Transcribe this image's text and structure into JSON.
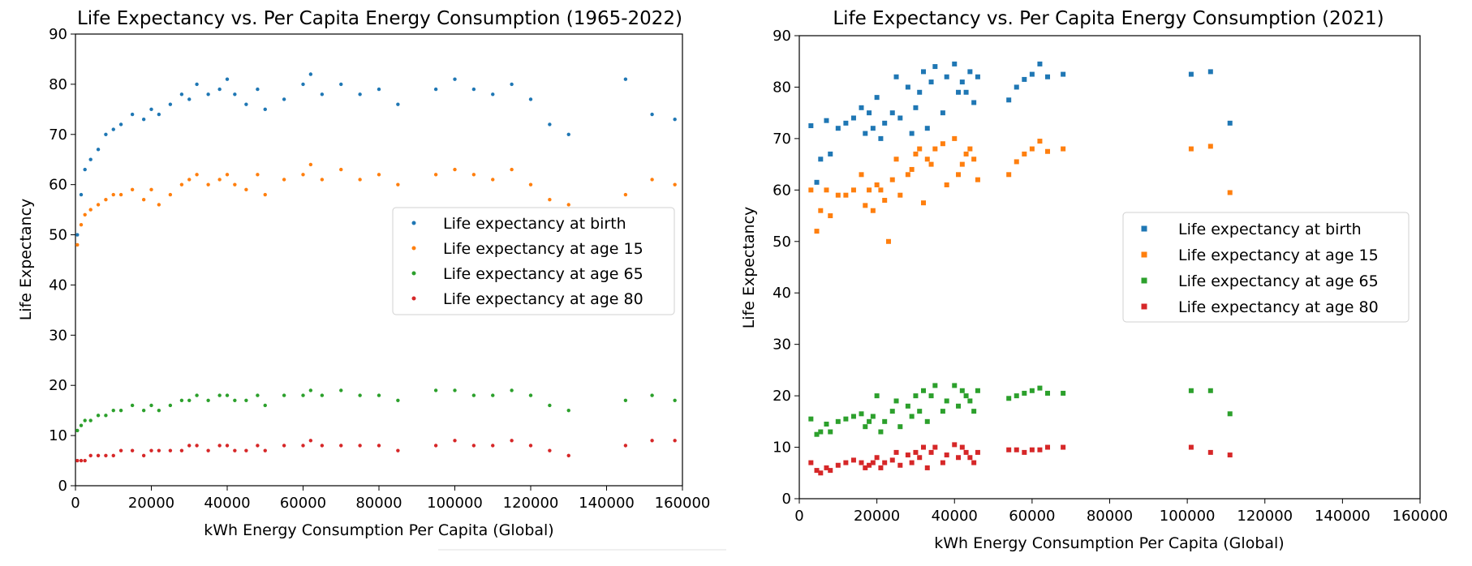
{
  "colors": {
    "birth": "#1f77b4",
    "age15": "#ff7f0e",
    "age65": "#2ca02c",
    "age80": "#d62728"
  },
  "chart_data": [
    {
      "type": "scatter",
      "title": "Life Expectancy vs. Per Capita Energy Consumption (1965-2022)",
      "xlabel": "kWh Energy Consumption Per Capita (Global)",
      "ylabel": "Life Expectancy",
      "xlim": [
        0,
        160000
      ],
      "ylim": [
        0,
        90
      ],
      "xticks": [
        "0",
        "20000",
        "40000",
        "60000",
        "80000",
        "100000",
        "120000",
        "140000",
        "160000"
      ],
      "yticks": [
        "0",
        "10",
        "20",
        "30",
        "40",
        "50",
        "60",
        "70",
        "80",
        "90"
      ],
      "grid": false,
      "legend_position": "center-right",
      "marker": "dot",
      "series": [
        {
          "name": "Life expectancy at birth",
          "color_key": "birth",
          "x": [
            500,
            1500,
            2500,
            4000,
            6000,
            8000,
            10000,
            12000,
            15000,
            18000,
            20000,
            22000,
            25000,
            28000,
            30000,
            32000,
            35000,
            38000,
            40000,
            42000,
            45000,
            48000,
            50000,
            55000,
            60000,
            62000,
            65000,
            70000,
            75000,
            80000,
            85000,
            95000,
            100000,
            105000,
            110000,
            115000,
            120000,
            125000,
            130000,
            145000,
            152000,
            158000
          ],
          "y": [
            50,
            58,
            63,
            65,
            67,
            70,
            71,
            72,
            74,
            73,
            75,
            74,
            76,
            78,
            77,
            80,
            78,
            79,
            81,
            78,
            76,
            79,
            75,
            77,
            80,
            82,
            78,
            80,
            78,
            79,
            76,
            79,
            81,
            79,
            78,
            80,
            77,
            72,
            70,
            81,
            74,
            73
          ]
        },
        {
          "name": "Life expectancy at age 15",
          "color_key": "age15",
          "x": [
            500,
            1500,
            2500,
            4000,
            6000,
            8000,
            10000,
            12000,
            15000,
            18000,
            20000,
            22000,
            25000,
            28000,
            30000,
            32000,
            35000,
            38000,
            40000,
            42000,
            45000,
            48000,
            50000,
            55000,
            60000,
            62000,
            65000,
            70000,
            75000,
            80000,
            85000,
            95000,
            100000,
            105000,
            110000,
            115000,
            120000,
            125000,
            130000,
            145000,
            152000,
            158000
          ],
          "y": [
            48,
            52,
            54,
            55,
            56,
            57,
            58,
            58,
            59,
            57,
            59,
            56,
            58,
            60,
            61,
            62,
            60,
            61,
            62,
            60,
            59,
            62,
            58,
            61,
            62,
            64,
            61,
            63,
            61,
            62,
            60,
            62,
            63,
            62,
            61,
            63,
            60,
            57,
            56,
            58,
            61,
            60
          ]
        },
        {
          "name": "Life expectancy at age 65",
          "color_key": "age65",
          "x": [
            500,
            1500,
            2500,
            4000,
            6000,
            8000,
            10000,
            12000,
            15000,
            18000,
            20000,
            22000,
            25000,
            28000,
            30000,
            32000,
            35000,
            38000,
            40000,
            42000,
            45000,
            48000,
            50000,
            55000,
            60000,
            62000,
            65000,
            70000,
            75000,
            80000,
            85000,
            95000,
            100000,
            105000,
            110000,
            115000,
            120000,
            125000,
            130000,
            145000,
            152000,
            158000
          ],
          "y": [
            11,
            12,
            13,
            13,
            14,
            14,
            15,
            15,
            16,
            15,
            16,
            15,
            16,
            17,
            17,
            18,
            17,
            18,
            18,
            17,
            17,
            18,
            16,
            18,
            18,
            19,
            18,
            19,
            18,
            18,
            17,
            19,
            19,
            18,
            18,
            19,
            18,
            16,
            15,
            17,
            18,
            17
          ]
        },
        {
          "name": "Life expectancy at age 80",
          "color_key": "age80",
          "x": [
            500,
            1500,
            2500,
            4000,
            6000,
            8000,
            10000,
            12000,
            15000,
            18000,
            20000,
            22000,
            25000,
            28000,
            30000,
            32000,
            35000,
            38000,
            40000,
            42000,
            45000,
            48000,
            50000,
            55000,
            60000,
            62000,
            65000,
            70000,
            75000,
            80000,
            85000,
            95000,
            100000,
            105000,
            110000,
            115000,
            120000,
            125000,
            130000,
            145000,
            152000,
            158000
          ],
          "y": [
            5,
            5,
            5,
            6,
            6,
            6,
            6,
            7,
            7,
            6,
            7,
            7,
            7,
            7,
            8,
            8,
            7,
            8,
            8,
            7,
            7,
            8,
            7,
            8,
            8,
            9,
            8,
            8,
            8,
            8,
            7,
            8,
            9,
            8,
            8,
            9,
            8,
            7,
            6,
            8,
            9,
            9
          ]
        }
      ]
    },
    {
      "type": "scatter",
      "title": "Life Expectancy vs. Per Capita Energy Consumption (2021)",
      "xlabel": "kWh Energy Consumption Per Capita (Global)",
      "ylabel": "Life Expectancy",
      "xlim": [
        0,
        160000
      ],
      "ylim": [
        0,
        90
      ],
      "xticks": [
        "0",
        "20000",
        "40000",
        "60000",
        "80000",
        "100000",
        "120000",
        "140000",
        "160000"
      ],
      "yticks": [
        "0",
        "10",
        "20",
        "30",
        "40",
        "50",
        "60",
        "70",
        "80",
        "90"
      ],
      "grid": false,
      "legend_position": "center-right",
      "marker": "square",
      "series": [
        {
          "name": "Life expectancy at birth",
          "color_key": "birth",
          "x": [
            3000,
            4500,
            5500,
            7000,
            8000,
            10000,
            12000,
            14000,
            16000,
            17000,
            18000,
            19000,
            20000,
            21000,
            22000,
            24000,
            25000,
            26000,
            28000,
            29000,
            30000,
            31000,
            32000,
            33000,
            34000,
            35000,
            37000,
            38000,
            40000,
            41000,
            42000,
            43000,
            44000,
            45000,
            46000,
            54000,
            56000,
            58000,
            60000,
            62000,
            64000,
            68000,
            101000,
            106000,
            111000
          ],
          "y": [
            72.5,
            61.5,
            66,
            73.5,
            67,
            72,
            73,
            74,
            76,
            71,
            75,
            72,
            78,
            70,
            73,
            75,
            82,
            74,
            80,
            71,
            76,
            79,
            83,
            72,
            81,
            84,
            75,
            82,
            84.5,
            79,
            81,
            79,
            83,
            77,
            82,
            77.5,
            80,
            81.5,
            82.5,
            84.5,
            82,
            82.5,
            82.5,
            83,
            73
          ]
        },
        {
          "name": "Life expectancy at age 15",
          "color_key": "age15",
          "x": [
            3000,
            4500,
            5500,
            7000,
            8000,
            10000,
            12000,
            14000,
            16000,
            17000,
            18000,
            19000,
            20000,
            21000,
            22000,
            23000,
            24000,
            25000,
            26000,
            28000,
            29000,
            30000,
            31000,
            32000,
            33000,
            34000,
            35000,
            37000,
            38000,
            40000,
            41000,
            42000,
            43000,
            44000,
            45000,
            46000,
            54000,
            56000,
            58000,
            60000,
            62000,
            64000,
            68000,
            101000,
            106000,
            111000
          ],
          "y": [
            60,
            52,
            56,
            60,
            55,
            59,
            59,
            60,
            63,
            57,
            60,
            56,
            61,
            60,
            58,
            50,
            62,
            66,
            59,
            63,
            64,
            67,
            68,
            57.5,
            66,
            65,
            68,
            69,
            61,
            70,
            63,
            65,
            67,
            68,
            66,
            62,
            63,
            65.5,
            67,
            68,
            69.5,
            67.5,
            68,
            68,
            68.5,
            59.5
          ]
        },
        {
          "name": "Life expectancy at age 65",
          "color_key": "age65",
          "x": [
            3000,
            4500,
            5500,
            7000,
            8000,
            10000,
            12000,
            14000,
            16000,
            17000,
            18000,
            19000,
            20000,
            21000,
            22000,
            24000,
            25000,
            26000,
            28000,
            29000,
            30000,
            31000,
            32000,
            33000,
            34000,
            35000,
            37000,
            38000,
            40000,
            41000,
            42000,
            43000,
            44000,
            45000,
            46000,
            54000,
            56000,
            58000,
            60000,
            62000,
            64000,
            68000,
            101000,
            106000,
            111000
          ],
          "y": [
            15.5,
            12.5,
            13,
            14.5,
            13,
            15,
            15.5,
            16,
            16.5,
            14,
            15,
            16,
            20,
            13,
            15,
            17,
            19,
            14,
            18,
            16,
            20,
            17,
            21,
            15,
            20,
            22,
            17,
            19,
            22,
            18,
            21,
            20,
            19,
            17,
            21,
            19.5,
            20,
            20.5,
            21,
            21.5,
            20.5,
            20.5,
            21,
            21,
            16.5
          ]
        },
        {
          "name": "Life expectancy at age 80",
          "color_key": "age80",
          "x": [
            3000,
            4500,
            5500,
            7000,
            8000,
            10000,
            12000,
            14000,
            16000,
            17000,
            18000,
            19000,
            20000,
            21000,
            22000,
            24000,
            25000,
            26000,
            28000,
            29000,
            30000,
            31000,
            32000,
            33000,
            34000,
            35000,
            37000,
            38000,
            40000,
            41000,
            42000,
            43000,
            44000,
            45000,
            46000,
            54000,
            56000,
            58000,
            60000,
            62000,
            64000,
            68000,
            101000,
            106000,
            111000
          ],
          "y": [
            7,
            5.5,
            5,
            6,
            5.5,
            6.5,
            7,
            7.5,
            7,
            6,
            6.5,
            7,
            8,
            6,
            7,
            7.5,
            9,
            6.5,
            8.5,
            7,
            9,
            8,
            10,
            6,
            9,
            10,
            7,
            8.5,
            10.5,
            8,
            10,
            9,
            8,
            7,
            9,
            9.5,
            9.5,
            9,
            9.5,
            9.5,
            10,
            10,
            10,
            9,
            8.5
          ]
        }
      ]
    }
  ]
}
